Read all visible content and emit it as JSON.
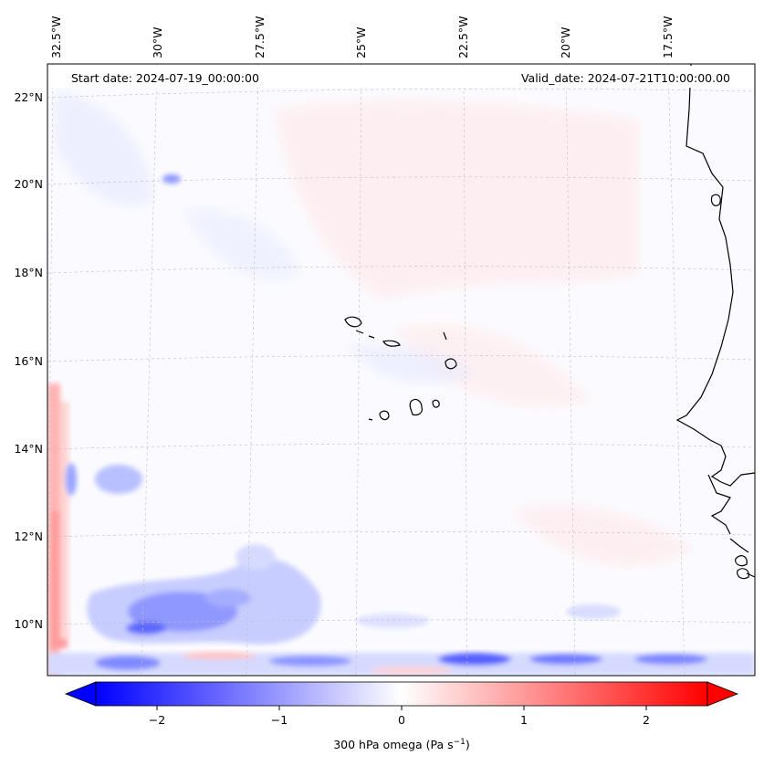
{
  "map": {
    "start_label": "Start date: 2024-07-19_00:00:00",
    "valid_label": "Valid_date: 2024-07-21T10:00:00.00",
    "lon_labels": [
      "32.5°W",
      "30°W",
      "27.5°W",
      "25°W",
      "22.5°W",
      "20°W",
      "17.5°W"
    ],
    "lat_labels": [
      "22°N",
      "20°N",
      "18°N",
      "16°N",
      "14°N",
      "12°N",
      "10°N"
    ],
    "gridlines": true
  },
  "colorbar": {
    "label": "300 hPa omega (Pa s",
    "label_sup": "−1",
    "label_close": ")",
    "ticks": [
      "−2",
      "−1",
      "0",
      "1",
      "2"
    ],
    "tick_values": [
      -2,
      -1,
      0,
      1,
      2
    ],
    "vmin": -2.5,
    "vmax": 2.5,
    "cmap_negative": "#0000ff",
    "cmap_zero": "#ffffff",
    "cmap_positive": "#ff0000"
  }
}
